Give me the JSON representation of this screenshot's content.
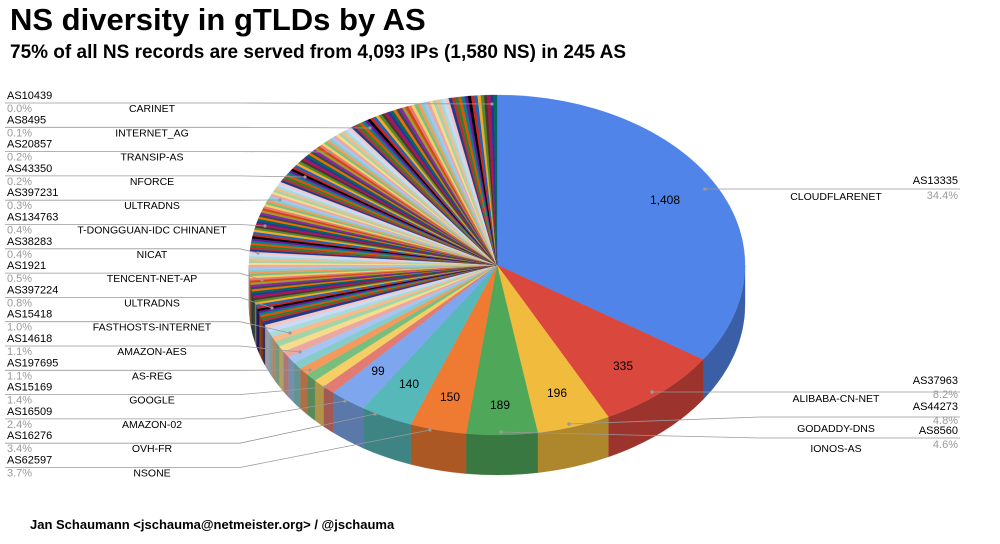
{
  "header": {
    "title": "NS diversity in gTLDs by AS",
    "subtitle": "75% of all NS records are served from 4,093 IPs (1,580 NS) in 245 AS"
  },
  "footer": {
    "credit": "Jan Schaumann <jschauma@netmeister.org> / @jschauma"
  },
  "chart_data": {
    "type": "pie",
    "title": "NS diversity in gTLDs by AS",
    "subtitle": "75% of all NS records are served from 4,093 IPs (1,580 NS) in 245 AS",
    "slices": [
      {
        "as": "AS13335",
        "name": "CLOUDFLARENET",
        "value": 1408,
        "pct": "34.4%",
        "color": "#5084e8"
      },
      {
        "as": "AS37963",
        "name": "ALIBABA-CN-NET",
        "value": 335,
        "pct": "8.2%",
        "color": "#d9473d"
      },
      {
        "as": "AS44273",
        "name": "GODADDY-DNS",
        "value": 196,
        "pct": "4.8%",
        "color": "#f1bb3e"
      },
      {
        "as": "AS8560",
        "name": "IONOS-AS",
        "value": 189,
        "pct": "4.6%",
        "color": "#4fa75a"
      },
      {
        "as": "AS62597",
        "name": "NSONE",
        "value": 150,
        "pct": "3.7%",
        "color": "#ef7a32"
      },
      {
        "as": "AS16276",
        "name": "OVH-FR",
        "value": 140,
        "pct": "3.4%",
        "color": "#56b8b9"
      },
      {
        "as": "AS16509",
        "name": "AMAZON-02",
        "value": 99,
        "pct": "2.4%",
        "color": "#7ea6ee"
      },
      {
        "as": "AS15169",
        "name": "GOOGLE",
        "value": 57,
        "pct": "1.4%",
        "color": "#e27b74"
      },
      {
        "as": "AS197695",
        "name": "AS-REG",
        "value": 45,
        "pct": "1.1%",
        "color": "#f5cf65"
      },
      {
        "as": "AS14618",
        "name": "AMAZON-AES",
        "value": 45,
        "pct": "1.1%",
        "color": "#78bf7f"
      },
      {
        "as": "AS15418",
        "name": "FASTHOSTS-INTERNET",
        "value": 41,
        "pct": "1.0%",
        "color": "#f59a5c"
      },
      {
        "as": "AS397224",
        "name": "ULTRADNS",
        "value": 33,
        "pct": "0.8%",
        "color": "#85cdcd"
      },
      {
        "as": "AS1921",
        "name": "TENCENT-NET-AP",
        "value": 20,
        "pct": "0.5%",
        "color": "#a8c4f3"
      },
      {
        "as": "AS38283",
        "name": "NICAT",
        "value": 16,
        "pct": "0.4%",
        "color": "#eba7a1"
      },
      {
        "as": "AS134763",
        "name": "T-DONGGUAN-IDC CHINANET",
        "value": 16,
        "pct": "0.4%",
        "color": "#f8dc8e"
      },
      {
        "as": "AS397231",
        "name": "ULTRADNS",
        "value": 12,
        "pct": "0.3%",
        "color": "#a3d4a8"
      },
      {
        "as": "AS43350",
        "name": "NFORCE",
        "value": 8,
        "pct": "0.2%",
        "color": "#f8b98b"
      },
      {
        "as": "AS20857",
        "name": "TRANSIP-AS",
        "value": 8,
        "pct": "0.2%",
        "color": "#a6dcdc"
      },
      {
        "as": "AS8495",
        "name": "INTERNET_AG",
        "value": 4,
        "pct": "0.1%",
        "color": "#c9dbf8"
      },
      {
        "as": "AS10439",
        "name": "CARINET",
        "value": 1,
        "pct": "0.0%",
        "color": "#f3c7c3"
      }
    ],
    "value_labels": [
      "1,408",
      "335",
      "196",
      "189",
      "150",
      "140",
      "99"
    ],
    "other_slices_note": "remaining AS drawn as thin multicolored slices",
    "other_colors": [
      "#1f3a8a",
      "#b8312f",
      "#2e7d32",
      "#e65100",
      "#00838f",
      "#6a1b9a",
      "#000000",
      "#c62828",
      "#1565c0",
      "#f9a825",
      "#558b2f",
      "#4e342e",
      "#ad1457",
      "#283593",
      "#00695c",
      "#ef6c00",
      "#37474f",
      "#8e24aa",
      "#9e9d24",
      "#d84315"
    ]
  }
}
